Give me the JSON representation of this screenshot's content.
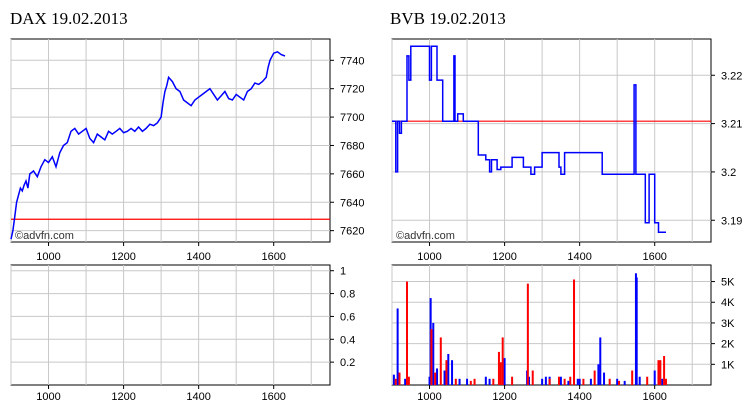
{
  "colors": {
    "price_line": "#0000ff",
    "reference_line": "#ff0000",
    "volume_up": "#0000ff",
    "volume_down": "#ff0000",
    "grid": "#c8c8c8"
  },
  "watermark": "©advfn.com",
  "chart_data": [
    {
      "id": "dax-price",
      "type": "line",
      "title": "DAX 19.02.2013",
      "x_ticks": [
        "1000",
        "1200",
        "1400",
        "1600"
      ],
      "x_tick_values": [
        1000,
        1200,
        1400,
        1600
      ],
      "xlim": [
        900,
        1750
      ],
      "y_ticks": [
        "7620",
        "7640",
        "7660",
        "7680",
        "7700",
        "7720",
        "7740"
      ],
      "y_tick_values": [
        7620,
        7640,
        7660,
        7680,
        7700,
        7720,
        7740
      ],
      "ylim": [
        7612,
        7755
      ],
      "reference_line": 7628,
      "series": [
        {
          "x": [
            900,
            905,
            910,
            915,
            920,
            925,
            930,
            935,
            940,
            945,
            950,
            960,
            970,
            980,
            990,
            1000,
            1010,
            1020,
            1030,
            1040,
            1050,
            1060,
            1070,
            1080,
            1090,
            1100,
            1110,
            1120,
            1130,
            1140,
            1150,
            1160,
            1170,
            1180,
            1190,
            1200,
            1210,
            1220,
            1230,
            1240,
            1250,
            1260,
            1270,
            1280,
            1290,
            1300,
            1305,
            1310,
            1315,
            1320,
            1330,
            1340,
            1350,
            1360,
            1370,
            1380,
            1390,
            1400,
            1410,
            1420,
            1430,
            1440,
            1450,
            1460,
            1470,
            1480,
            1490,
            1500,
            1510,
            1520,
            1530,
            1540,
            1550,
            1560,
            1570,
            1580,
            1585,
            1590,
            1600,
            1610,
            1620,
            1630
          ],
          "y": [
            7614,
            7620,
            7630,
            7640,
            7645,
            7650,
            7648,
            7652,
            7655,
            7650,
            7660,
            7662,
            7658,
            7665,
            7670,
            7668,
            7672,
            7665,
            7675,
            7680,
            7682,
            7690,
            7692,
            7688,
            7690,
            7692,
            7685,
            7682,
            7688,
            7686,
            7684,
            7690,
            7688,
            7690,
            7692,
            7689,
            7690,
            7692,
            7690,
            7693,
            7690,
            7692,
            7695,
            7694,
            7696,
            7700,
            7710,
            7718,
            7722,
            7728,
            7725,
            7720,
            7718,
            7712,
            7710,
            7708,
            7712,
            7714,
            7716,
            7718,
            7720,
            7716,
            7712,
            7715,
            7718,
            7713,
            7712,
            7716,
            7714,
            7712,
            7718,
            7720,
            7724,
            7723,
            7725,
            7728,
            7735,
            7740,
            7745,
            7746,
            7744,
            7743
          ]
        }
      ]
    },
    {
      "id": "dax-volume",
      "type": "bar",
      "x_ticks": [
        "1000",
        "1200",
        "1400",
        "1600"
      ],
      "x_tick_values": [
        1000,
        1200,
        1400,
        1600
      ],
      "xlim": [
        900,
        1750
      ],
      "y_ticks": [
        "0.2",
        "0.4",
        "0.6",
        "0.8",
        "1"
      ],
      "y_tick_values": [
        0.2,
        0.4,
        0.6,
        0.8,
        1
      ],
      "ylim": [
        0,
        1.05
      ],
      "series": []
    },
    {
      "id": "bvb-price",
      "type": "line",
      "title": "BVB 19.02.2013",
      "x_ticks": [
        "1000",
        "1200",
        "1400",
        "1600"
      ],
      "x_tick_values": [
        1000,
        1200,
        1400,
        1600
      ],
      "xlim": [
        900,
        1750
      ],
      "y_ticks": [
        "3.19",
        "3.2",
        "3.21",
        "3.22"
      ],
      "y_tick_values": [
        3.19,
        3.2,
        3.21,
        3.22
      ],
      "ylim": [
        3.1855,
        3.2275
      ],
      "reference_line": 3.2105,
      "series": [
        {
          "x": [
            900,
            910,
            910,
            915,
            915,
            920,
            920,
            925,
            925,
            940,
            940,
            945,
            945,
            950,
            950,
            1000,
            1000,
            1005,
            1005,
            1020,
            1020,
            1035,
            1035,
            1065,
            1065,
            1068,
            1068,
            1075,
            1075,
            1090,
            1090,
            1130,
            1130,
            1150,
            1150,
            1160,
            1160,
            1165,
            1165,
            1180,
            1180,
            1190,
            1190,
            1220,
            1220,
            1250,
            1250,
            1270,
            1270,
            1280,
            1280,
            1300,
            1300,
            1345,
            1345,
            1350,
            1350,
            1360,
            1360,
            1460,
            1460,
            1545,
            1545,
            1550,
            1550,
            1555,
            1555,
            1575,
            1575,
            1585,
            1585,
            1600,
            1600,
            1610,
            1610,
            1630
          ],
          "y": [
            3.2105,
            3.2105,
            3.2,
            3.2,
            3.2105,
            3.2105,
            3.208,
            3.208,
            3.2105,
            3.2105,
            3.224,
            3.224,
            3.219,
            3.219,
            3.226,
            3.226,
            3.219,
            3.219,
            3.226,
            3.226,
            3.219,
            3.219,
            3.2105,
            3.2105,
            3.224,
            3.224,
            3.2105,
            3.2105,
            3.212,
            3.212,
            3.2105,
            3.2105,
            3.2035,
            3.2035,
            3.2025,
            3.2025,
            3.2,
            3.2,
            3.2025,
            3.2025,
            3.2005,
            3.2005,
            3.201,
            3.201,
            3.203,
            3.203,
            3.201,
            3.201,
            3.1995,
            3.1995,
            3.201,
            3.201,
            3.204,
            3.204,
            3.201,
            3.201,
            3.1995,
            3.1995,
            3.204,
            3.204,
            3.1995,
            3.1995,
            3.218,
            3.218,
            3.1995,
            3.1995,
            3.1995,
            3.1995,
            3.1895,
            3.1895,
            3.1995,
            3.1995,
            3.1895,
            3.1895,
            3.1875,
            3.1875
          ]
        }
      ]
    },
    {
      "id": "bvb-volume",
      "type": "bar",
      "x_ticks": [
        "1000",
        "1200",
        "1400",
        "1600"
      ],
      "x_tick_values": [
        1000,
        1200,
        1400,
        1600
      ],
      "xlim": [
        900,
        1750
      ],
      "y_ticks": [
        "1K",
        "2K",
        "3K",
        "4K",
        "5K"
      ],
      "y_tick_values": [
        1000,
        2000,
        3000,
        4000,
        5000
      ],
      "ylim": [
        0,
        5800
      ],
      "series": [
        {
          "direction": "up",
          "x": [
            905,
            915,
            935,
            1000,
            1003,
            1010,
            1020,
            1040,
            1050,
            1060,
            1080,
            1100,
            1150,
            1160,
            1200,
            1260,
            1265,
            1300,
            1310,
            1320,
            1350,
            1370,
            1395,
            1400,
            1430,
            1450,
            1455,
            1465,
            1500,
            1520,
            1550,
            1552,
            1560,
            1600,
            1620
          ],
          "y": [
            500,
            3700,
            300,
            400,
            4200,
            3000,
            800,
            700,
            1500,
            1200,
            300,
            300,
            400,
            300,
            1300,
            700,
            400,
            300,
            400,
            400,
            400,
            200,
            300,
            300,
            300,
            1000,
            2300,
            600,
            300,
            200,
            5400,
            5200,
            400,
            700,
            300
          ]
        },
        {
          "direction": "down",
          "x": [
            910,
            920,
            940,
            945,
            1005,
            1015,
            1030,
            1045,
            1070,
            1110,
            1120,
            1170,
            1185,
            1190,
            1195,
            1220,
            1262,
            1275,
            1320,
            1345,
            1360,
            1375,
            1385,
            1410,
            1440,
            1480,
            1505,
            1540,
            1580,
            1610,
            1615,
            1625,
            1630
          ],
          "y": [
            300,
            600,
            5000,
            400,
            2700,
            600,
            2300,
            1200,
            300,
            200,
            300,
            300,
            1600,
            1100,
            2300,
            400,
            4900,
            700,
            300,
            400,
            300,
            400,
            5100,
            300,
            700,
            300,
            200,
            700,
            400,
            1200,
            1200,
            1400,
            300
          ]
        }
      ]
    }
  ]
}
